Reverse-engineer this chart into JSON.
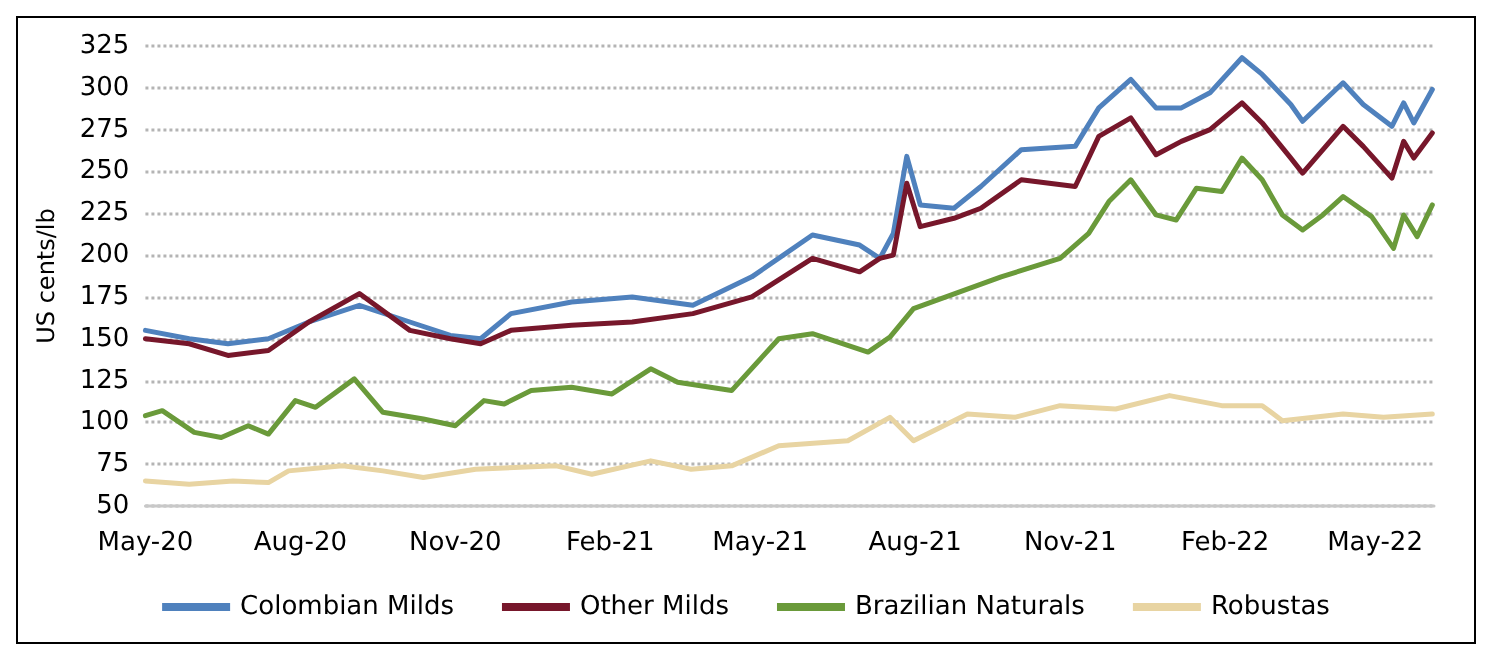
{
  "chart_data": {
    "type": "line",
    "ylabel": "US cents/lb",
    "xlim": [
      "2020-05-01",
      "2022-06-05"
    ],
    "xticks": [
      {
        "value": "2020-05",
        "label": "May-20"
      },
      {
        "value": "2020-08",
        "label": "Aug-20"
      },
      {
        "value": "2020-11",
        "label": "Nov-20"
      },
      {
        "value": "2021-02",
        "label": "Feb-21"
      },
      {
        "value": "2021-05",
        "label": "May-21"
      },
      {
        "value": "2021-08",
        "label": "Aug-21"
      },
      {
        "value": "2021-11",
        "label": "Nov-21"
      },
      {
        "value": "2022-02",
        "label": "Feb-22"
      },
      {
        "value": "2022-05",
        "label": "May-22"
      }
    ],
    "ylim": [
      50,
      325
    ],
    "yticks": [
      50,
      75,
      100,
      125,
      150,
      175,
      200,
      225,
      250,
      275,
      300,
      325
    ],
    "grid": "y",
    "legend": "bottom",
    "marker": "none",
    "line_style": "solid",
    "series": [
      {
        "name": "Colombian Milds",
        "color": "#4f81bd",
        "x": [
          "2020-05-01",
          "2020-05-27",
          "2020-06-19",
          "2020-07-13",
          "2020-08-06",
          "2020-09-05",
          "2020-10-05",
          "2020-10-29",
          "2020-11-16",
          "2020-12-04",
          "2021-01-09",
          "2021-02-14",
          "2021-03-22",
          "2021-04-26",
          "2021-06-01",
          "2021-06-29",
          "2021-07-11",
          "2021-07-19",
          "2021-07-27",
          "2021-08-04",
          "2021-08-24",
          "2021-09-09",
          "2021-10-03",
          "2021-11-04",
          "2021-11-18",
          "2021-12-07",
          "2021-12-22",
          "2022-01-06",
          "2022-01-23",
          "2022-02-11",
          "2022-02-23",
          "2022-03-12",
          "2022-03-19",
          "2022-04-12",
          "2022-04-24",
          "2022-05-11",
          "2022-05-18",
          "2022-05-24",
          "2022-06-04"
        ],
        "values": [
          155,
          150,
          147,
          150,
          160,
          170,
          160,
          152,
          150,
          165,
          172,
          175,
          170,
          187,
          212,
          206,
          198,
          213,
          259,
          230,
          228,
          241,
          263,
          265,
          288,
          305,
          288,
          288,
          297,
          318,
          308,
          290,
          280,
          303,
          290,
          277,
          291,
          279,
          299
        ]
      },
      {
        "name": "Other Milds",
        "color": "#77172b",
        "x": [
          "2020-05-01",
          "2020-05-27",
          "2020-06-19",
          "2020-07-13",
          "2020-08-06",
          "2020-09-05",
          "2020-10-05",
          "2020-10-29",
          "2020-11-16",
          "2020-12-04",
          "2021-01-09",
          "2021-02-14",
          "2021-03-22",
          "2021-04-26",
          "2021-06-01",
          "2021-06-29",
          "2021-07-11",
          "2021-07-19",
          "2021-07-27",
          "2021-08-04",
          "2021-08-24",
          "2021-09-09",
          "2021-10-03",
          "2021-11-04",
          "2021-11-18",
          "2021-12-07",
          "2021-12-22",
          "2022-01-06",
          "2022-01-23",
          "2022-02-11",
          "2022-02-23",
          "2022-03-12",
          "2022-03-19",
          "2022-04-12",
          "2022-04-24",
          "2022-05-11",
          "2022-05-18",
          "2022-05-24",
          "2022-06-04"
        ],
        "values": [
          150,
          147,
          140,
          143,
          160,
          177,
          155,
          150,
          147,
          155,
          158,
          160,
          165,
          175,
          198,
          190,
          198,
          200,
          243,
          217,
          222,
          228,
          245,
          241,
          271,
          282,
          260,
          268,
          275,
          291,
          279,
          258,
          249,
          277,
          265,
          246,
          268,
          258,
          273
        ]
      },
      {
        "name": "Brazilian Naturals",
        "color": "#6a9a3a",
        "x": [
          "2020-05-01",
          "2020-05-11",
          "2020-05-30",
          "2020-06-15",
          "2020-07-01",
          "2020-07-13",
          "2020-07-29",
          "2020-08-10",
          "2020-09-02",
          "2020-09-19",
          "2020-10-13",
          "2020-11-01",
          "2020-11-18",
          "2020-11-30",
          "2020-12-16",
          "2021-01-09",
          "2021-02-02",
          "2021-02-25",
          "2021-03-13",
          "2021-04-14",
          "2021-05-12",
          "2021-06-01",
          "2021-07-04",
          "2021-07-17",
          "2021-07-31",
          "2021-09-21",
          "2021-10-26",
          "2021-11-12",
          "2021-11-24",
          "2021-12-07",
          "2021-12-22",
          "2022-01-03",
          "2022-01-15",
          "2022-01-30",
          "2022-02-11",
          "2022-02-23",
          "2022-03-07",
          "2022-03-19",
          "2022-03-31",
          "2022-04-12",
          "2022-04-29",
          "2022-05-12",
          "2022-05-18",
          "2022-05-26",
          "2022-06-04"
        ],
        "values": [
          104,
          107,
          94,
          91,
          98,
          93,
          113,
          109,
          126,
          106,
          102,
          98,
          113,
          111,
          119,
          121,
          117,
          132,
          124,
          119,
          150,
          153,
          142,
          151,
          168,
          187,
          198,
          213,
          232,
          245,
          224,
          221,
          240,
          238,
          258,
          245,
          224,
          215,
          224,
          235,
          223,
          204,
          224,
          211,
          230
        ]
      },
      {
        "name": "Robustas",
        "color": "#e8d4a2",
        "x": [
          "2020-05-01",
          "2020-05-27",
          "2020-06-22",
          "2020-07-13",
          "2020-07-25",
          "2020-08-26",
          "2020-09-19",
          "2020-10-13",
          "2020-11-13",
          "2020-12-31",
          "2021-01-21",
          "2021-02-25",
          "2021-03-21",
          "2021-04-14",
          "2021-05-12",
          "2021-06-22",
          "2021-07-17",
          "2021-07-31",
          "2021-09-01",
          "2021-09-29",
          "2021-10-26",
          "2021-11-28",
          "2021-12-30",
          "2022-01-30",
          "2022-02-23",
          "2022-03-07",
          "2022-04-12",
          "2022-05-06",
          "2022-06-04"
        ],
        "values": [
          65,
          63,
          65,
          64,
          71,
          74,
          71,
          67,
          72,
          74,
          69,
          77,
          72,
          74,
          86,
          89,
          103,
          89,
          105,
          103,
          110,
          108,
          116,
          110,
          110,
          101,
          105,
          103,
          105
        ]
      }
    ]
  }
}
